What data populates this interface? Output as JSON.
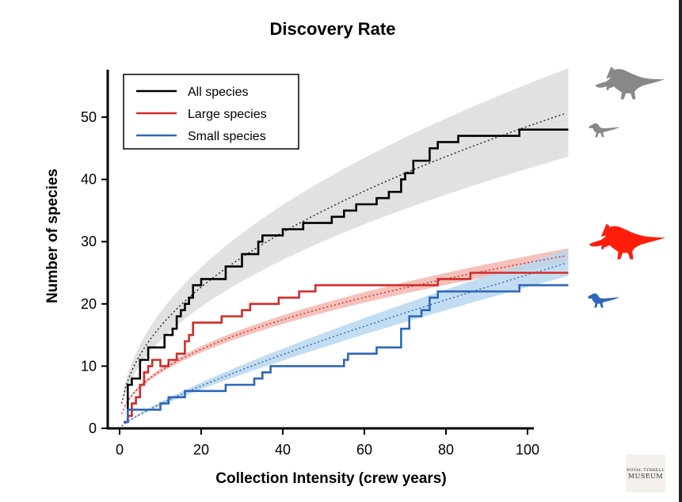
{
  "chart_data": {
    "type": "line",
    "title": "Discovery Rate",
    "xlabel": "Collection Intensity (crew years)",
    "ylabel": "Number of species",
    "xlim": [
      -3,
      110
    ],
    "ylim": [
      0,
      58
    ],
    "xticks": [
      0,
      20,
      40,
      60,
      80,
      100
    ],
    "yticks": [
      0,
      10,
      20,
      30,
      40,
      50
    ],
    "grid": false,
    "legend_position": "top-left",
    "series": [
      {
        "name": "All species",
        "color": "#000000",
        "band_color": "#dcdcdc",
        "silhouette": "hadrosaur-and-small-theropod-gray-icon",
        "points": [
          [
            1,
            1
          ],
          [
            2,
            7
          ],
          [
            3,
            8
          ],
          [
            4,
            8
          ],
          [
            5,
            11
          ],
          [
            6,
            11
          ],
          [
            7,
            13
          ],
          [
            10,
            13
          ],
          [
            11,
            15
          ],
          [
            13,
            16
          ],
          [
            14,
            18
          ],
          [
            15,
            19
          ],
          [
            16,
            20
          ],
          [
            17,
            21
          ],
          [
            18,
            23
          ],
          [
            20,
            24
          ],
          [
            25,
            24
          ],
          [
            26,
            26
          ],
          [
            28,
            26
          ],
          [
            30,
            28
          ],
          [
            33,
            28
          ],
          [
            34,
            30
          ],
          [
            35,
            31
          ],
          [
            39,
            31
          ],
          [
            40,
            32
          ],
          [
            44,
            32
          ],
          [
            45,
            33
          ],
          [
            51,
            33
          ],
          [
            52,
            34
          ],
          [
            54,
            34
          ],
          [
            55,
            35
          ],
          [
            57,
            35
          ],
          [
            58,
            36
          ],
          [
            62,
            36
          ],
          [
            63,
            37
          ],
          [
            65,
            37
          ],
          [
            66,
            38
          ],
          [
            68,
            38
          ],
          [
            69,
            40
          ],
          [
            70,
            41
          ],
          [
            72,
            43
          ],
          [
            75,
            43
          ],
          [
            76,
            45
          ],
          [
            78,
            46
          ],
          [
            82,
            46
          ],
          [
            83,
            47
          ],
          [
            97,
            47
          ],
          [
            98,
            48
          ],
          [
            110,
            48
          ]
        ],
        "fit": {
          "a": 5.52,
          "b": 0.472
        },
        "band": {
          "lower_factor": 0.86,
          "upper_factor": 1.14
        }
      },
      {
        "name": "Large species",
        "color": "#d42a2a",
        "band_color": "#f3b6ae",
        "silhouette": "hadrosaur-red-icon",
        "points": [
          [
            1,
            1
          ],
          [
            2,
            2
          ],
          [
            3,
            4
          ],
          [
            4,
            5
          ],
          [
            5,
            7
          ],
          [
            6,
            9
          ],
          [
            7,
            10
          ],
          [
            8,
            11
          ],
          [
            10,
            10
          ],
          [
            12,
            11
          ],
          [
            14,
            12
          ],
          [
            16,
            14
          ],
          [
            17,
            15
          ],
          [
            18,
            17
          ],
          [
            22,
            17
          ],
          [
            25,
            18
          ],
          [
            29,
            18
          ],
          [
            30,
            19
          ],
          [
            32,
            20
          ],
          [
            38,
            20
          ],
          [
            39,
            21
          ],
          [
            44,
            22
          ],
          [
            48,
            23
          ],
          [
            55,
            23
          ],
          [
            60,
            23
          ],
          [
            66,
            23
          ],
          [
            70,
            23
          ],
          [
            75,
            23
          ],
          [
            77,
            23
          ],
          [
            78,
            24
          ],
          [
            84,
            24
          ],
          [
            86,
            25
          ],
          [
            100,
            25
          ],
          [
            110,
            25
          ]
        ],
        "fit": {
          "a": 3.2,
          "b": 0.46
        },
        "band": {
          "lower_factor": 0.96,
          "upper_factor": 1.04
        }
      },
      {
        "name": "Small species",
        "color": "#2f66b8",
        "band_color": "#b7d7ef",
        "silhouette": "small-theropod-blue-icon",
        "points": [
          [
            1,
            1
          ],
          [
            2,
            3
          ],
          [
            4,
            3
          ],
          [
            8,
            3
          ],
          [
            10,
            4
          ],
          [
            12,
            5
          ],
          [
            15,
            5
          ],
          [
            16,
            6
          ],
          [
            25,
            6
          ],
          [
            26,
            7
          ],
          [
            32,
            7
          ],
          [
            33,
            8
          ],
          [
            35,
            9
          ],
          [
            37,
            10
          ],
          [
            40,
            10
          ],
          [
            48,
            10
          ],
          [
            54,
            10
          ],
          [
            55,
            11
          ],
          [
            56,
            12
          ],
          [
            62,
            12
          ],
          [
            63,
            13
          ],
          [
            67,
            13
          ],
          [
            69,
            16
          ],
          [
            71,
            18
          ],
          [
            74,
            19
          ],
          [
            76,
            21
          ],
          [
            78,
            22
          ],
          [
            88,
            22
          ],
          [
            97,
            22
          ],
          [
            98,
            23
          ],
          [
            100,
            23
          ],
          [
            110,
            23
          ]
        ],
        "fit": {
          "a": 0.62,
          "b": 0.8
        },
        "band": {
          "lower_factor": 0.92,
          "upper_factor": 1.08
        }
      }
    ]
  },
  "watermark": {
    "line1": "ROYAL TYRRELL",
    "line2": "MUSEUM",
    "icon": "museum-logo-icon"
  }
}
